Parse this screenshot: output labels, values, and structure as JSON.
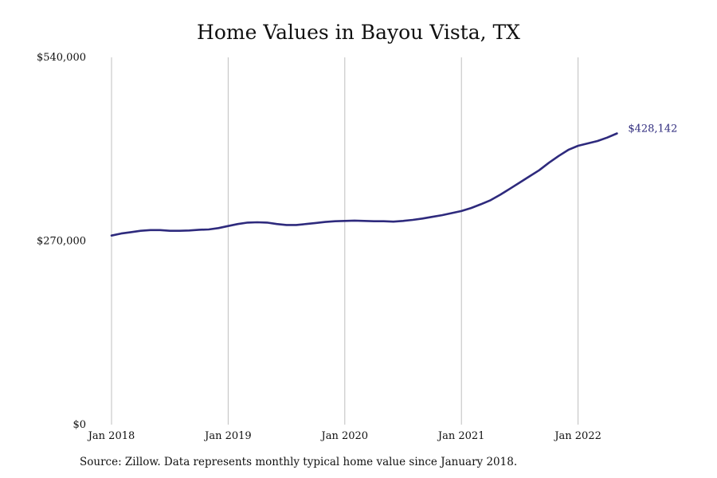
{
  "chart_data": {
    "type": "line",
    "title": "Home Values in Bayou Vista, TX",
    "xlabel": "",
    "ylabel": "",
    "ylim": [
      0,
      540000
    ],
    "y_ticks": [
      {
        "value": 0,
        "label": "$0"
      },
      {
        "value": 270000,
        "label": "$270,000"
      },
      {
        "value": 540000,
        "label": "$540,000"
      }
    ],
    "x_ticks": [
      {
        "value": 2018.0,
        "label": "Jan 2018"
      },
      {
        "value": 2019.0,
        "label": "Jan 2019"
      },
      {
        "value": 2020.0,
        "label": "Jan 2020"
      },
      {
        "value": 2021.0,
        "label": "Jan 2021"
      },
      {
        "value": 2022.0,
        "label": "Jan 2022"
      }
    ],
    "xlim": [
      2018.0,
      2023.0
    ],
    "grid": "vertical",
    "series_color": "#2e2a7d",
    "gridline_color": "#bfbfbf",
    "end_label": "$428,142",
    "series": [
      {
        "name": "",
        "x": [
          2018.0,
          2018.083,
          2018.167,
          2018.25,
          2018.333,
          2018.417,
          2018.5,
          2018.583,
          2018.667,
          2018.75,
          2018.833,
          2018.917,
          2019.0,
          2019.083,
          2019.167,
          2019.25,
          2019.333,
          2019.417,
          2019.5,
          2019.583,
          2019.667,
          2019.75,
          2019.833,
          2019.917,
          2020.0,
          2020.083,
          2020.167,
          2020.25,
          2020.333,
          2020.417,
          2020.5,
          2020.583,
          2020.667,
          2020.75,
          2020.833,
          2020.917,
          2021.0,
          2021.083,
          2021.167,
          2021.25,
          2021.333,
          2021.417,
          2021.5,
          2021.583,
          2021.667,
          2021.75,
          2021.833,
          2021.917,
          2022.0,
          2022.083,
          2022.167,
          2022.25,
          2022.333
        ],
        "y": [
          278000,
          281000,
          283000,
          285000,
          286000,
          286000,
          285000,
          285000,
          285500,
          286500,
          287000,
          289000,
          292000,
          295000,
          297000,
          297500,
          297000,
          295000,
          293500,
          293500,
          295000,
          296500,
          298000,
          299000,
          299500,
          300000,
          299500,
          299000,
          299000,
          298500,
          299500,
          301000,
          303000,
          305500,
          308000,
          311000,
          314000,
          318500,
          324000,
          330000,
          338000,
          347000,
          356000,
          365000,
          374000,
          385000,
          395000,
          404000,
          410000,
          413500,
          417000,
          422000,
          428142
        ]
      }
    ]
  },
  "footer": {
    "source_note": "Source: Zillow. Data represents monthly typical home value since January 2018."
  }
}
